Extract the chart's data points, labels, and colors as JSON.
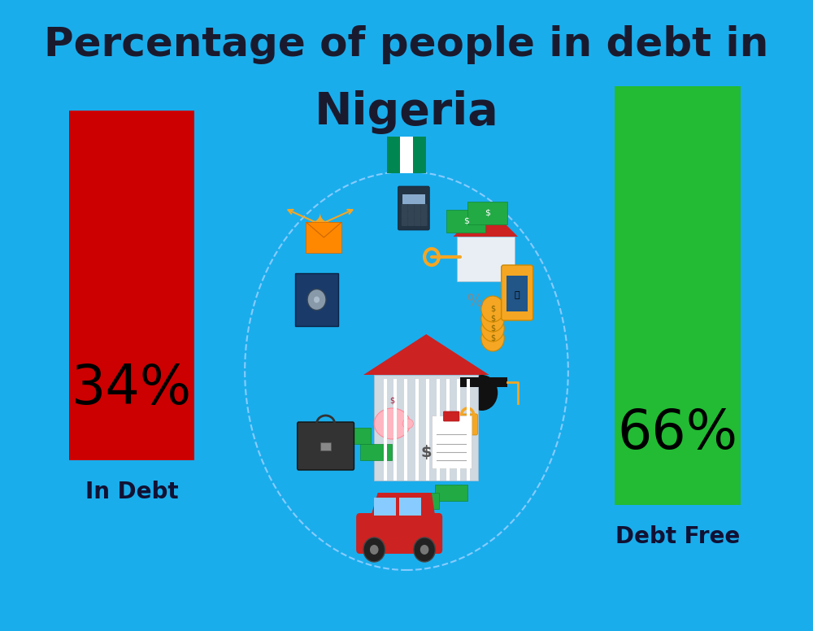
{
  "background_color": "#1AADEC",
  "title_line1": "Percentage of people in debt in",
  "title_line2": "Nigeria",
  "title_color": "#1a1a2e",
  "title_fontsize": 36,
  "title_line2_fontsize": 40,
  "bar1_label": "In Debt",
  "bar1_value": "34%",
  "bar1_color": "#CC0000",
  "bar2_label": "Debt Free",
  "bar2_value": "66%",
  "bar2_color": "#22BB33",
  "label_fontsize": 20,
  "value_fontsize": 48,
  "label_color": "#111133",
  "value_color": "#000000",
  "flag_green": "#008751",
  "flag_white": "#FFFFFF",
  "ellipse_border_color": "#AADDFF",
  "ellipse_fill": "#1AADEC",
  "bank_body": "#D0D8E0",
  "bank_roof": "#CC2222",
  "coin_color": "#F5A623",
  "money_color": "#22AA44",
  "briefcase_color": "#222222",
  "car_color": "#CC2222",
  "safe_color": "#1A3A6A",
  "grad_color": "#222222",
  "eagle_color": "#F5A623",
  "house_roof": "#CC2222",
  "house_body": "#E8EEF4",
  "phone_color": "#F5A623",
  "lock_color": "#F5A623",
  "envelope_color": "#FF8800"
}
